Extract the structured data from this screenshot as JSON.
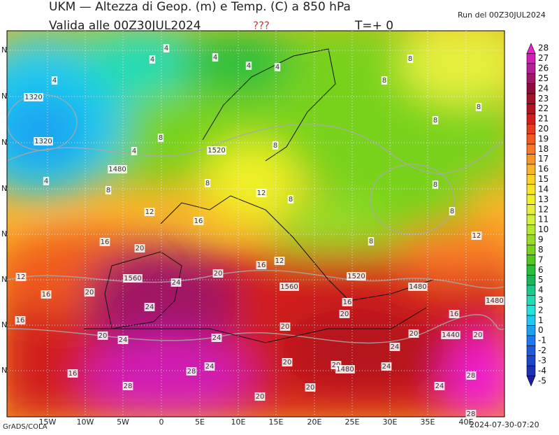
{
  "header": {
    "title": "UKM — Altezza di Geop. (m) e Temp. (C) a 850 hPa",
    "valid": "Valida alle 00Z30JUL2024",
    "flag": "???",
    "step": "T=+ 0",
    "run": "Run del 00Z30JUL2024"
  },
  "colorbar": {
    "ticks": [
      28,
      27,
      26,
      25,
      24,
      23,
      22,
      21,
      20,
      19,
      18,
      17,
      16,
      15,
      14,
      13,
      12,
      11,
      10,
      9,
      8,
      7,
      6,
      5,
      4,
      3,
      2,
      1,
      0,
      -1,
      -2,
      -3,
      -4,
      -5
    ],
    "colors": [
      "#f01ed2",
      "#d21eb4",
      "#b41e96",
      "#a01464",
      "#8c0a3c",
      "#a01428",
      "#b4141e",
      "#d21e1e",
      "#e63c1e",
      "#f05a1e",
      "#fa7828",
      "#fa9628",
      "#fab428",
      "#fad228",
      "#fae628",
      "#f0f028",
      "#e6f03c",
      "#d2f03c",
      "#b4e632",
      "#96dc28",
      "#78d21e",
      "#50c81e",
      "#28be3c",
      "#1eb45a",
      "#1ec88c",
      "#1edcb4",
      "#1ee6dc",
      "#1ec8f0",
      "#1ea0f0",
      "#1e78f0",
      "#1e5adc",
      "#1e46c8",
      "#1e32b4",
      "#1e1ea0"
    ]
  },
  "x_axis": [
    "15W",
    "10W",
    "5W",
    "0",
    "5E",
    "10E",
    "15E",
    "20E",
    "25E",
    "30E",
    "35E",
    "40E"
  ],
  "y_axis": [
    "N",
    "N",
    "N",
    "N",
    "N",
    "N",
    "N",
    "N"
  ],
  "contour_labels": [
    "4",
    "4",
    "4",
    "4",
    "4",
    "8",
    "4",
    "8",
    "1320",
    "8",
    "8",
    "1320",
    "8",
    "1520",
    "8",
    "4",
    "1480",
    "4",
    "8",
    "8",
    "12",
    "8",
    "8",
    "12",
    "8",
    "16",
    "12",
    "16",
    "8",
    "20",
    "12",
    "16",
    "20",
    "12",
    "1560",
    "24",
    "1520",
    "1560",
    "1480",
    "16",
    "20",
    "24",
    "16",
    "1480",
    "20",
    "16",
    "16",
    "20",
    "20",
    "1440",
    "20",
    "20",
    "24",
    "24",
    "24",
    "16",
    "20",
    "24",
    "28",
    "20",
    "1480",
    "24",
    "28",
    "28",
    "20",
    "24",
    "20",
    "28"
  ],
  "footer": {
    "left": "GrADS/COLA",
    "right": "2024-07-30-07:20"
  }
}
